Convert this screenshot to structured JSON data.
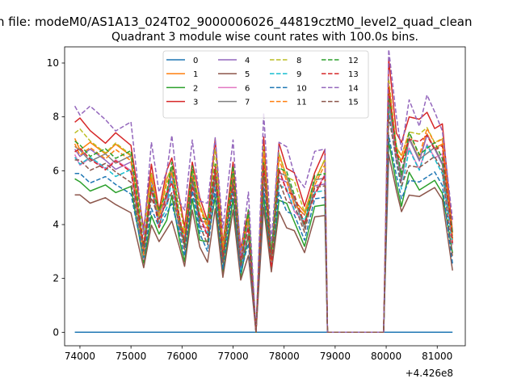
{
  "header": {
    "file_title": "n file: modeM0/AS1A13_024T02_9000006026_44819cztM0_level2_quad_clean",
    "title": "Quadrant 3 module wise count rates with 100.0s bins.",
    "x_offset_label": "+4.426e8"
  },
  "chart_data": {
    "type": "line",
    "title": "Quadrant 3 module wise count rates with 100.0s bins.",
    "xlabel": "",
    "ylabel": "",
    "x_offset": 442600000,
    "xlim": [
      73700,
      81550
    ],
    "ylim": [
      -0.5,
      10.6
    ],
    "xticks": [
      74000,
      75000,
      76000,
      77000,
      78000,
      79000,
      80000,
      81000
    ],
    "yticks": [
      0,
      2,
      4,
      6,
      8,
      10
    ],
    "legend_position": "upper center",
    "legend_columns": 4,
    "grid": false,
    "data_gap": [
      78900,
      79900
    ],
    "event_times": [
      73900,
      74000,
      74200,
      74500,
      74700,
      75000,
      75250,
      75400,
      75550,
      75700,
      75800,
      75950,
      76050,
      76200,
      76350,
      76500,
      76650,
      76800,
      77000,
      77150,
      77300,
      77450,
      77600,
      77750,
      77900,
      78050,
      78200,
      78400,
      78600,
      78800,
      78850,
      79950,
      80050,
      80200,
      80300,
      80450,
      80650,
      80800,
      80950,
      81100,
      81300
    ],
    "series": [
      {
        "name": "0",
        "color": "#1f77b4",
        "dash": "solid",
        "profile": "zero"
      },
      {
        "name": "1",
        "color": "#ff7f0e",
        "dash": "solid",
        "level_pre": 7.2,
        "level_post": 7.6
      },
      {
        "name": "2",
        "color": "#2ca02c",
        "dash": "solid",
        "level_pre": 5.7,
        "level_post": 6.0
      },
      {
        "name": "3",
        "color": "#d62728",
        "dash": "solid",
        "level_pre": 7.8,
        "level_post": 8.6
      },
      {
        "name": "4",
        "color": "#9467bd",
        "dash": "solid",
        "level_pre": 6.8,
        "level_post": 7.4
      },
      {
        "name": "5",
        "color": "#8c564b",
        "dash": "solid",
        "level_pre": 5.1,
        "level_post": 5.6
      },
      {
        "name": "6",
        "color": "#e377c2",
        "dash": "solid",
        "level_pre": 6.6,
        "level_post": 7.2
      },
      {
        "name": "7",
        "color": "#7f7f7f",
        "dash": "solid",
        "level_pre": 6.9,
        "level_post": 7.3
      },
      {
        "name": "8",
        "color": "#bcbd22",
        "dash": "dashed",
        "level_pre": 7.4,
        "level_post": 8.0
      },
      {
        "name": "9",
        "color": "#17becf",
        "dash": "dashed",
        "level_pre": 6.5,
        "level_post": 7.0
      },
      {
        "name": "10",
        "color": "#1f77b4",
        "dash": "dashed",
        "level_pre": 5.9,
        "level_post": 6.2
      },
      {
        "name": "11",
        "color": "#ff7f0e",
        "dash": "dashed",
        "level_pre": 7.0,
        "level_post": 7.8
      },
      {
        "name": "12",
        "color": "#2ca02c",
        "dash": "dashed",
        "level_pre": 7.1,
        "level_post": 7.5
      },
      {
        "name": "13",
        "color": "#d62728",
        "dash": "dashed",
        "level_pre": 6.7,
        "level_post": 7.7
      },
      {
        "name": "14",
        "color": "#9467bd",
        "dash": "dashed",
        "level_pre": 8.4,
        "level_post": 8.9
      },
      {
        "name": "15",
        "color": "#8c564b",
        "dash": "dashed",
        "level_pre": 6.4,
        "level_post": 6.8
      }
    ],
    "shape_factors": [
      1.0,
      0.98,
      0.96,
      0.94,
      0.93,
      0.91,
      0.45,
      0.8,
      0.62,
      0.75,
      0.85,
      0.6,
      0.5,
      0.85,
      0.62,
      0.55,
      0.88,
      0.42,
      0.85,
      0.38,
      0.6,
      0.0,
      0.93,
      0.4,
      0.88,
      0.8,
      0.72,
      0.6,
      0.8,
      0.85,
      0.0,
      0.0,
      1.18,
      0.9,
      0.8,
      0.95,
      0.88,
      0.95,
      0.92,
      0.88,
      0.45
    ]
  }
}
